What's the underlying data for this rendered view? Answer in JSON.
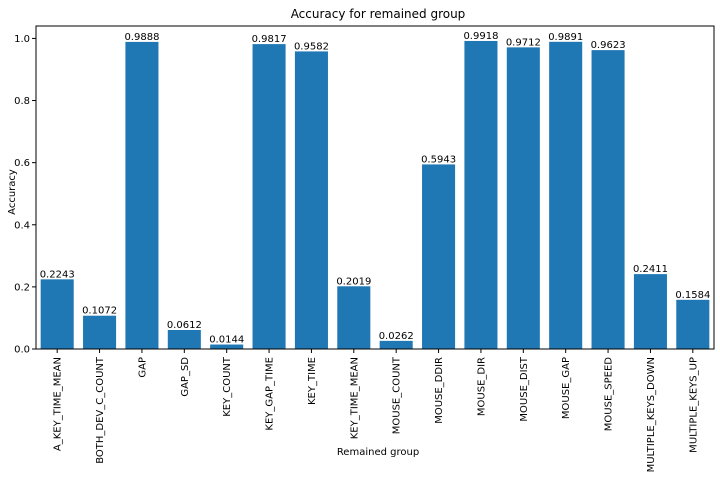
{
  "chart_data": {
    "type": "bar",
    "title": "Accuracy for remained group",
    "xlabel": "Remained group",
    "ylabel": "Accuracy",
    "ylim": [
      0,
      1.04
    ],
    "yticks": [
      "0.0",
      "0.2",
      "0.4",
      "0.6",
      "0.8",
      "1.0"
    ],
    "grid": false,
    "bar_color": "#1f77b4",
    "categories": [
      "A_KEY_TIME_MEAN",
      "BOTH_DEV_C_COUNT",
      "GAP",
      "GAP_SD",
      "KEY_COUNT",
      "KEY_GAP_TIME",
      "KEY_TIME",
      "KEY_TIME_MEAN",
      "MOUSE_COUNT",
      "MOUSE_DDIR",
      "MOUSE_DIR",
      "MOUSE_DIST",
      "MOUSE_GAP",
      "MOUSE_SPEED",
      "MULTIPLE_KEYS_DOWN",
      "MULTIPLE_KEYS_UP"
    ],
    "values": [
      0.2243,
      0.1072,
      0.9888,
      0.0612,
      0.0144,
      0.9817,
      0.9582,
      0.2019,
      0.0262,
      0.5943,
      0.9918,
      0.9712,
      0.9891,
      0.9623,
      0.2411,
      0.1584
    ],
    "value_labels": [
      "0.2243",
      "0.1072",
      "0.9888",
      "0.0612",
      "0.0144",
      "0.9817",
      "0.9582",
      "0.2019",
      "0.0262",
      "0.5943",
      "0.9918",
      "0.9712",
      "0.9891",
      "0.9623",
      "0.2411",
      "0.1584"
    ]
  }
}
